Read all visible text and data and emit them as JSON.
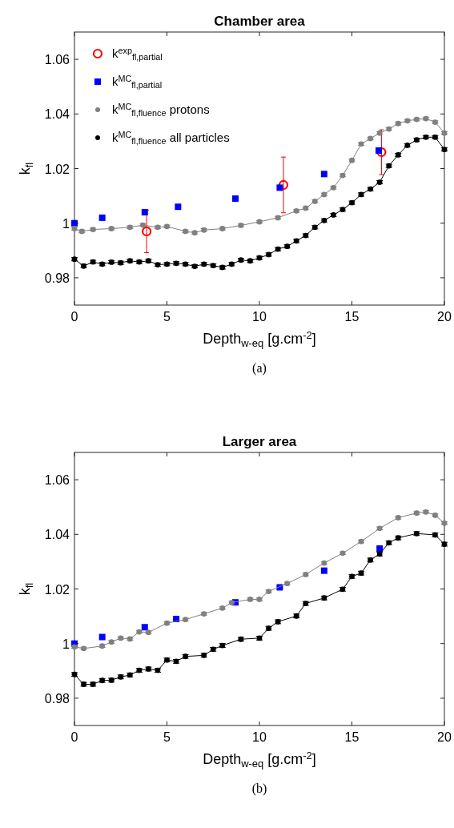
{
  "chart_data": [
    {
      "type": "scatter",
      "title": "Chamber area",
      "xlabel": "Depth$_{w-eq}$ [g.cm$^{-2}$]",
      "ylabel": "k$_{fl}$",
      "xlim": [
        0,
        20
      ],
      "ylim": [
        0.97,
        1.07
      ],
      "xticks": [
        0,
        5,
        10,
        15,
        20
      ],
      "yticks": [
        {
          "value": 0.98,
          "label": "0.98"
        },
        {
          "value": 1,
          "label": "1"
        },
        {
          "value": 1.02,
          "label": "1.02"
        },
        {
          "value": 1.04,
          "label": "1.04"
        },
        {
          "value": 1.06,
          "label": "1.06"
        }
      ],
      "grid": false,
      "legend": "top left",
      "annotations": [
        "(a)"
      ],
      "series": [
        {
          "type": "scatter",
          "name": "k$^{exp}$$_{fl,partial}$",
          "color": "#ff0000",
          "marker": "circle",
          "x": [
            3.9,
            11.3,
            16.6
          ],
          "values": [
            0.997,
            1.014,
            1.026
          ],
          "errors": [
            0.0078,
            0.0102,
            0.0082
          ]
        },
        {
          "type": "scatter",
          "name": "k$^{MC}$$_{fl,partial}$",
          "color": "#0000ff",
          "marker": "square",
          "x": [
            0,
            1.5,
            3.8,
            5.6,
            8.7,
            11.1,
            13.5,
            16.45
          ],
          "values": [
            1.0,
            1.002,
            1.004,
            1.006,
            1.009,
            1.013,
            1.018,
            1.0266
          ]
        },
        {
          "type": "line",
          "name": "k$^{MC}$$_{fl,fluence}$ protons",
          "color": "#808080",
          "marker": "circle",
          "x": [
            0,
            0.4,
            1,
            2,
            3,
            3.7,
            4.5,
            5,
            6,
            6.5,
            7,
            8,
            9,
            10,
            11,
            12,
            12.5,
            13,
            13.5,
            14,
            14.5,
            15,
            15.5,
            16,
            16.5,
            17,
            17.5,
            18,
            18.5,
            19,
            19.5,
            20
          ],
          "values": [
            0.998,
            0.997,
            0.9977,
            0.998,
            0.9985,
            0.9993,
            0.9985,
            0.9988,
            0.997,
            0.9965,
            0.9975,
            0.998,
            0.9992,
            1.0005,
            1.002,
            1.0045,
            1.0055,
            1.008,
            1.0105,
            1.013,
            1.0175,
            1.023,
            1.029,
            1.031,
            1.033,
            1.0345,
            1.0365,
            1.0375,
            1.038,
            1.0383,
            1.037,
            1.033
          ],
          "errors": [
            0.0005,
            0.0005,
            0.0005,
            0.0005,
            0.0005,
            0.0005,
            0.0005,
            0.0005,
            0.0005,
            0.0005,
            0.0005,
            0.0005,
            0.0005,
            0.0005,
            0.0005,
            0.0005,
            0.0005,
            0.0005,
            0.0005,
            0.0005,
            0.0005,
            0.0005,
            0.0005,
            0.0005,
            0.0005,
            0.0005,
            0.0005,
            0.0005,
            0.0005,
            0.0005,
            0.0005,
            0.0005
          ]
        },
        {
          "type": "line",
          "name": "k$^{MC}$$_{fl,fluence}$ all particles",
          "color": "#000000",
          "marker": "circle",
          "x": [
            0,
            0.5,
            1,
            1.5,
            2,
            2.5,
            3,
            3.5,
            4,
            4.5,
            5,
            5.5,
            6,
            6.5,
            7,
            7.5,
            8,
            8.5,
            9,
            9.5,
            10,
            10.5,
            11,
            11.5,
            12,
            12.5,
            13,
            13.5,
            14,
            14.5,
            15,
            15.5,
            16,
            16.5,
            17,
            17.5,
            18,
            18.5,
            19,
            19.5,
            20
          ],
          "values": [
            0.9868,
            0.9843,
            0.9858,
            0.985,
            0.9857,
            0.9855,
            0.9862,
            0.9858,
            0.9862,
            0.9848,
            0.985,
            0.9853,
            0.985,
            0.9842,
            0.985,
            0.9845,
            0.9838,
            0.985,
            0.9865,
            0.9862,
            0.9873,
            0.9885,
            0.9905,
            0.9915,
            0.9935,
            0.9955,
            0.9985,
            1.001,
            1.003,
            1.005,
            1.0075,
            1.0105,
            1.0125,
            1.015,
            1.021,
            1.025,
            1.0285,
            1.0305,
            1.0315,
            1.0315,
            1.027
          ],
          "errors": [
            0.0006,
            0.0006,
            0.0006,
            0.0006,
            0.0006,
            0.0006,
            0.0006,
            0.0006,
            0.0006,
            0.0006,
            0.0006,
            0.0006,
            0.0006,
            0.0006,
            0.0006,
            0.0006,
            0.0006,
            0.0006,
            0.0006,
            0.0006,
            0.0006,
            0.0006,
            0.0006,
            0.0006,
            0.0006,
            0.0006,
            0.0006,
            0.0006,
            0.0006,
            0.0006,
            0.0006,
            0.0006,
            0.0006,
            0.0006,
            0.0006,
            0.0006,
            0.0006,
            0.0006,
            0.0006,
            0.0006,
            0.0006
          ]
        }
      ]
    },
    {
      "type": "scatter",
      "title": "Larger area",
      "xlabel": "Depth$_{w-eq}$ [g.cm$^{-2}$]",
      "ylabel": "k$_{fl}$",
      "xlim": [
        0,
        20
      ],
      "ylim": [
        0.97,
        1.07
      ],
      "xticks": [
        0,
        5,
        10,
        15,
        20
      ],
      "yticks": [
        {
          "value": 0.98,
          "label": "0.98"
        },
        {
          "value": 1,
          "label": "1"
        },
        {
          "value": 1.02,
          "label": "1.02"
        },
        {
          "value": 1.04,
          "label": "1.04"
        },
        {
          "value": 1.06,
          "label": "1.06"
        }
      ],
      "grid": false,
      "annotations": [
        "(b)"
      ],
      "series": [
        {
          "type": "scatter",
          "color": "#0000ff",
          "marker": "square",
          "x": [
            0,
            1.5,
            3.8,
            5.5,
            8.7,
            11.1,
            13.5,
            16.5
          ],
          "values": [
            1.0,
            1.0024,
            1.006,
            1.009,
            1.0151,
            1.0206,
            1.0267,
            1.0348
          ]
        },
        {
          "type": "line",
          "color": "#808080",
          "marker": "circle",
          "x": [
            0,
            0.5,
            1.5,
            2,
            2.5,
            3,
            3.5,
            4,
            5,
            6,
            7,
            8,
            8.5,
            9.5,
            10,
            10.5,
            11.5,
            12.5,
            13.5,
            14.5,
            15.5,
            16.5,
            17.5,
            18.5,
            19,
            19.5,
            20
          ],
          "values": [
            0.9988,
            0.9982,
            0.9991,
            1.0006,
            1.002,
            1.0017,
            1.0043,
            1.0041,
            1.0075,
            1.0088,
            1.0109,
            1.013,
            1.015,
            1.0162,
            1.0162,
            1.0191,
            1.022,
            1.0253,
            1.0295,
            1.0331,
            1.0374,
            1.0422,
            1.0461,
            1.0478,
            1.0482,
            1.047,
            1.0441
          ],
          "errors": [
            0.0005,
            0.0005,
            0.0005,
            0.0005,
            0.0005,
            0.0005,
            0.0005,
            0.0005,
            0.0005,
            0.0005,
            0.0005,
            0.0005,
            0.0005,
            0.0005,
            0.0005,
            0.0005,
            0.0005,
            0.0005,
            0.0005,
            0.0005,
            0.0005,
            0.0005,
            0.0005,
            0.0005,
            0.0005,
            0.0005,
            0.0005
          ]
        },
        {
          "type": "line",
          "color": "#000000",
          "marker": "circle",
          "x": [
            0,
            0.5,
            1,
            1.5,
            2,
            2.5,
            3,
            3.5,
            4,
            4.5,
            5,
            5.5,
            6,
            7,
            7.5,
            8,
            9,
            10,
            10.5,
            11,
            12,
            12.5,
            13.5,
            14.5,
            15,
            15.5,
            16,
            16.5,
            17,
            17.5,
            18.5,
            19.5,
            20
          ],
          "values": [
            0.9887,
            0.9851,
            0.9851,
            0.9865,
            0.9866,
            0.9878,
            0.9885,
            0.9902,
            0.9907,
            0.9902,
            0.994,
            0.9935,
            0.9953,
            0.9957,
            0.9979,
            0.9993,
            1.0016,
            1.002,
            1.0056,
            1.008,
            1.0101,
            1.0147,
            1.0167,
            1.0199,
            1.0246,
            1.0258,
            1.0306,
            1.0328,
            1.0369,
            1.0387,
            1.0403,
            1.0398,
            1.0364
          ],
          "errors": [
            0.0007,
            0.0007,
            0.0007,
            0.0007,
            0.0007,
            0.0007,
            0.0007,
            0.0007,
            0.0007,
            0.0007,
            0.0007,
            0.0007,
            0.0007,
            0.0007,
            0.0007,
            0.0007,
            0.0007,
            0.0007,
            0.0007,
            0.0007,
            0.0007,
            0.0007,
            0.0007,
            0.0007,
            0.0007,
            0.0007,
            0.0007,
            0.0007,
            0.0007,
            0.0007,
            0.0007,
            0.0007,
            0.0007
          ]
        }
      ]
    }
  ]
}
